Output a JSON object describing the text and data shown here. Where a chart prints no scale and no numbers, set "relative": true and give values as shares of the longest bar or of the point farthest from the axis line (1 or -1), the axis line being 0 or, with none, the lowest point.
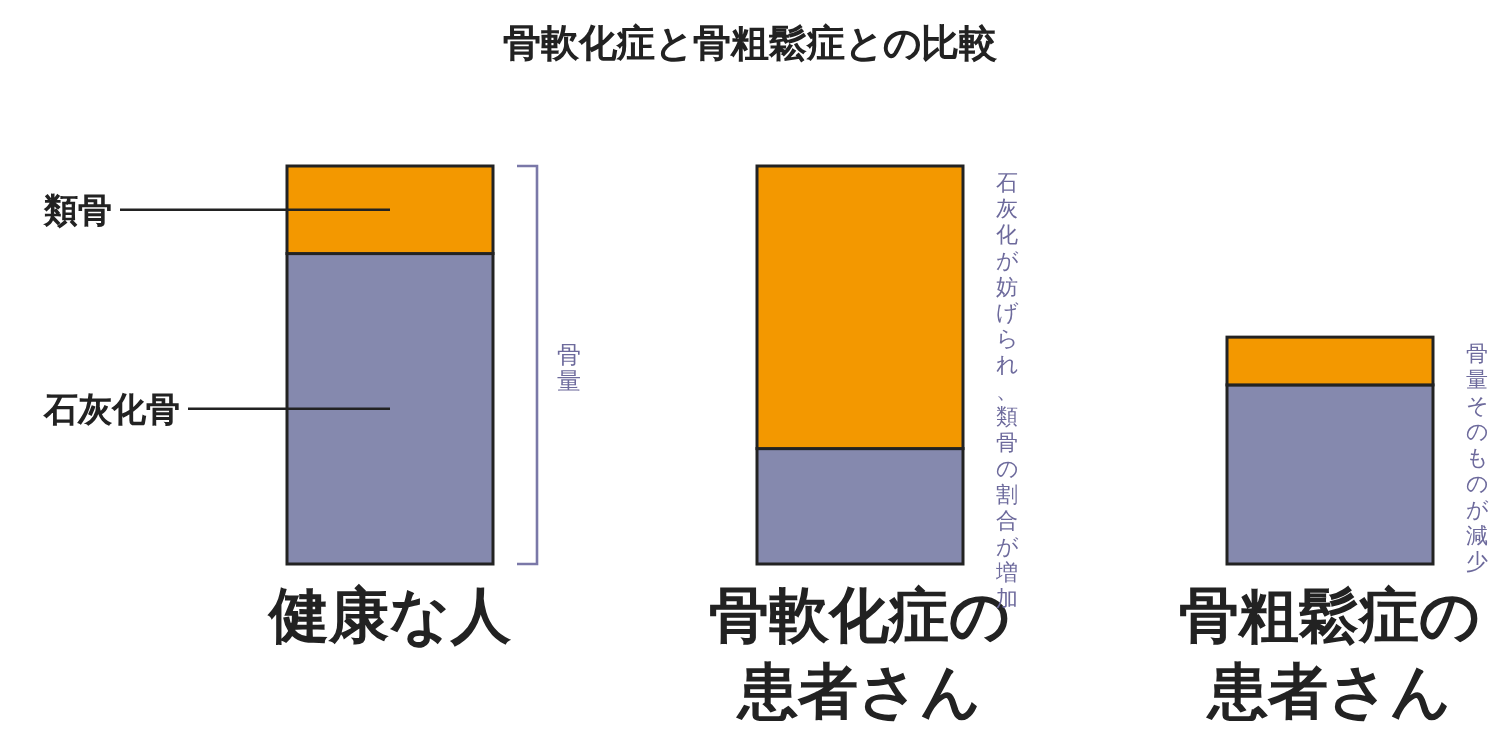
{
  "chart_data": {
    "type": "bar",
    "title": "骨軟化症と骨粗鬆症との比較",
    "stacked": true,
    "relative": true,
    "legend": false,
    "categories": [
      "健康な人",
      "骨軟化症の患者さん",
      "骨粗鬆症の患者さん"
    ],
    "series": [
      {
        "name": "石灰化骨",
        "color": "#8589ae",
        "values": [
          0.78,
          0.29,
          0.45
        ]
      },
      {
        "name": "類骨",
        "color": "#f39800",
        "values": [
          0.22,
          0.71,
          0.12
        ]
      }
    ],
    "annotations": [
      "骨量",
      "石灰化が妨げられ、類骨の割合が増加",
      "骨量そのものが減少"
    ]
  }
}
